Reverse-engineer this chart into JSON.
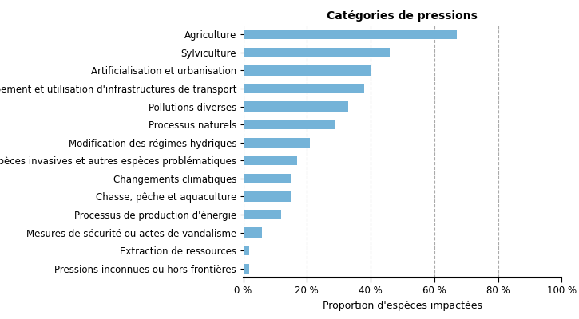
{
  "title": "Catégories de pressions",
  "xlabel": "Proportion d'espèces impactées",
  "categories": [
    "Agriculture",
    "Sylviculture",
    "Artificialisation et urbanisation",
    "Développement et utilisation d'infrastructures de transport",
    "Pollutions diverses",
    "Processus naturels",
    "Modification des régimes hydriques",
    "Espèces invasives et autres espèces problématiques",
    "Changements climatiques",
    "Chasse, pêche et aquaculture",
    "Processus de production d'énergie",
    "Mesures de sécurité ou actes de vandalisme",
    "Extraction de ressources",
    "Pressions inconnues ou hors frontières"
  ],
  "values": [
    67,
    46,
    40,
    38,
    33,
    29,
    21,
    17,
    15,
    15,
    12,
    6,
    2,
    2
  ],
  "bar_color": "#74b3d8",
  "xlim": [
    0,
    100
  ],
  "xticks": [
    0,
    20,
    40,
    60,
    80,
    100
  ],
  "xtick_labels": [
    "0 %",
    "20 %",
    "40 %",
    "60 %",
    "80 %",
    "100 %"
  ],
  "grid_color": "#aaaaaa",
  "title_fontsize": 10,
  "label_fontsize": 9,
  "tick_fontsize": 8.5,
  "bar_height": 0.55
}
